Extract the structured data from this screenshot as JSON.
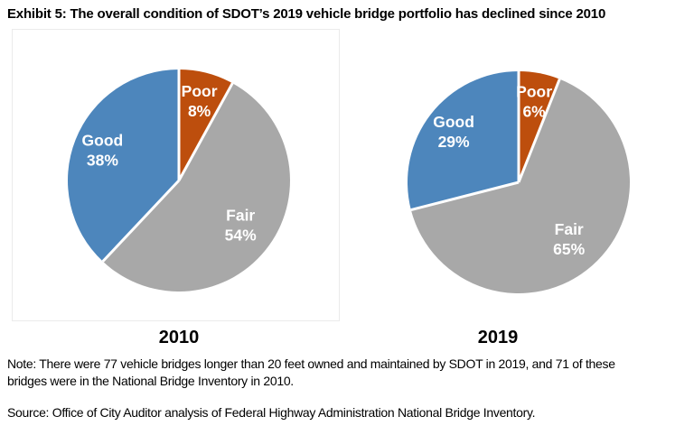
{
  "title": "Exhibit 5: The overall condition of SDOT’s 2019 vehicle bridge portfolio has declined since 2010",
  "chart_data": [
    {
      "type": "pie",
      "title": "2010",
      "labels": [
        "Poor",
        "Fair",
        "Good"
      ],
      "values": [
        8,
        54,
        38
      ],
      "unit": "%",
      "colors": [
        "#BD4E0D",
        "#A8A8A8",
        "#4D86BC"
      ],
      "start_angle_deg": 0,
      "direction": "clockwise",
      "slice_label_color": "#FFFFFF",
      "separator_color": "#FFFFFF"
    },
    {
      "type": "pie",
      "title": "2019",
      "labels": [
        "Poor",
        "Fair",
        "Good"
      ],
      "values": [
        6,
        65,
        29
      ],
      "unit": "%",
      "colors": [
        "#BD4E0D",
        "#A8A8A8",
        "#4D86BC"
      ],
      "start_angle_deg": 0,
      "direction": "clockwise",
      "slice_label_color": "#FFFFFF",
      "separator_color": "#FFFFFF"
    }
  ],
  "note": "Note: There were 77 vehicle bridges longer than 20 feet owned and maintained by SDOT in 2019, and 71 of these bridges were in the National Bridge Inventory in 2010.",
  "source": "Source: Office of City Auditor analysis of Federal Highway Administration National Bridge Inventory."
}
